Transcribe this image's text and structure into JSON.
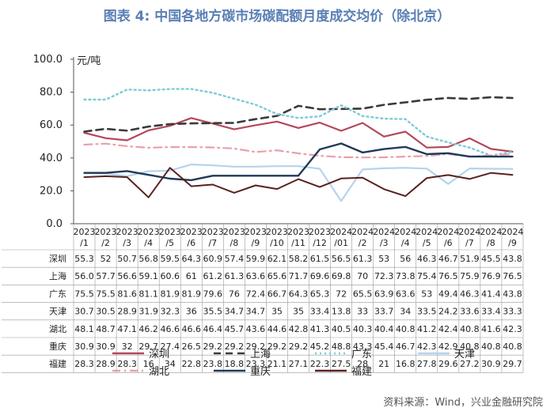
{
  "title": "图表 4:  中国各地方碳市场碳配额月度成交均价（除北京）",
  "source": "资料来源：Wind，兴业金融研究院",
  "chart_data": {
    "type": "line",
    "ylabel": "元/吨",
    "ylim": [
      0,
      100
    ],
    "yticks": [
      "0.0",
      "20.0",
      "40.0",
      "60.0",
      "80.0",
      "100.0"
    ],
    "grid": false,
    "legend_position": "bottom",
    "categories": [
      [
        "2023",
        "/1"
      ],
      [
        "2023",
        "/2"
      ],
      [
        "2023",
        "/3"
      ],
      [
        "2023",
        "/4"
      ],
      [
        "2023",
        "/5"
      ],
      [
        "2023",
        "/6"
      ],
      [
        "2023",
        "/7"
      ],
      [
        "2023",
        "/8"
      ],
      [
        "2023",
        "/9"
      ],
      [
        "2023",
        "/10"
      ],
      [
        "2023",
        "/11"
      ],
      [
        "2023",
        "/12"
      ],
      [
        "2024",
        "/01"
      ],
      [
        "2024",
        "/2"
      ],
      [
        "2024",
        "/3"
      ],
      [
        "2024",
        "/4"
      ],
      [
        "2024",
        "/5"
      ],
      [
        "2024",
        "/6"
      ],
      [
        "2024",
        "/7"
      ],
      [
        "2024",
        "/8"
      ],
      [
        "2024",
        "/9"
      ]
    ],
    "series": [
      {
        "name": "深圳",
        "color": "#b5475b",
        "style": "solid",
        "width": 2.2,
        "legend_row": 0,
        "values": [
          55.3,
          52,
          50.7,
          56.8,
          59.5,
          64.3,
          60.9,
          57.4,
          59.9,
          62.1,
          58.2,
          61.5,
          56.5,
          61.3,
          53,
          56,
          46.3,
          46.7,
          51.9,
          45.5,
          43.8
        ],
        "labels": [
          "55.3",
          "52",
          "50.7",
          "56.8",
          "59.5",
          "64.3",
          "60.9",
          "57.4",
          "59.9",
          "62.1",
          "58.2",
          "61.5",
          "56.5",
          "61.3",
          "53",
          "56",
          "46.3",
          "46.7",
          "51.9",
          "45.5",
          "43.8"
        ]
      },
      {
        "name": "上海",
        "color": "#3a3a3a",
        "style": "dash",
        "width": 2.6,
        "legend_row": 0,
        "values": [
          56.0,
          57.7,
          56.6,
          59.1,
          60.6,
          61,
          61.2,
          61.3,
          63.6,
          65.6,
          71.7,
          69.6,
          69.8,
          70,
          72.3,
          73.8,
          75.4,
          76.5,
          75.9,
          76.9,
          76.5
        ],
        "labels": [
          "56.0",
          "57.7",
          "56.6",
          "59.1",
          "60.6",
          "61",
          "61.2",
          "61.3",
          "63.6",
          "65.6",
          "71.7",
          "69.6",
          "69.8",
          "70",
          "72.3",
          "73.8",
          "75.4",
          "76.5",
          "75.9",
          "76.9",
          "76.5"
        ]
      },
      {
        "name": "广东",
        "color": "#7ecad8",
        "style": "dot",
        "width": 2.4,
        "legend_row": 0,
        "values": [
          75.5,
          75.5,
          81.6,
          81.1,
          81.9,
          81.9,
          79.6,
          76,
          72.4,
          66.7,
          64.3,
          65.3,
          72,
          65.5,
          63.9,
          63.6,
          53,
          49.4,
          46.3,
          41.4,
          43.8
        ],
        "labels": [
          "75.5",
          "75.5",
          "81.6",
          "81.1",
          "81.9",
          "81.9",
          "79.6",
          "76",
          "72.4",
          "66.7",
          "64.3",
          "65.3",
          "72",
          "65.5",
          "63.9",
          "63.6",
          "53",
          "49.4",
          "46.3",
          "41.4",
          "43.8"
        ]
      },
      {
        "name": "天津",
        "color": "#b5d3ec",
        "style": "solid",
        "width": 2.2,
        "legend_row": 0,
        "values": [
          30.7,
          30.5,
          28.9,
          31.9,
          32.3,
          36,
          35.5,
          34.7,
          34.7,
          35,
          35,
          33.4,
          13.8,
          33,
          33.7,
          34,
          33.5,
          24.2,
          33.6,
          33.4,
          33.3
        ],
        "labels": [
          "30.7",
          "30.5",
          "28.9",
          "31.9",
          "32.3",
          "36",
          "35.5",
          "34.7",
          "34.7",
          "35",
          "35",
          "33.4",
          "13.8",
          "33",
          "33.7",
          "34",
          "33.5",
          "24.2",
          "33.6",
          "33.4",
          "33.3"
        ]
      },
      {
        "name": "湖北",
        "color": "#e8a0aa",
        "style": "dashdot",
        "width": 2.2,
        "legend_row": 1,
        "values": [
          48.1,
          48.7,
          47.1,
          46.2,
          46.6,
          46.6,
          46.4,
          45.7,
          43.6,
          44.6,
          42.8,
          41.3,
          40.5,
          40.3,
          40.4,
          40.8,
          41.2,
          42.4,
          40.8,
          41.6,
          42.3
        ],
        "labels": [
          "48.1",
          "48.7",
          "47.1",
          "46.2",
          "46.6",
          "46.6",
          "46.4",
          "45.7",
          "43.6",
          "44.6",
          "42.8",
          "41.3",
          "40.5",
          "40.3",
          "40.4",
          "40.8",
          "41.2",
          "42.4",
          "40.8",
          "41.6",
          "42.3"
        ]
      },
      {
        "name": "重庆",
        "color": "#1f3a5a",
        "style": "solid",
        "width": 2.4,
        "legend_row": 1,
        "values": [
          30.9,
          30.9,
          32,
          29.7,
          27.4,
          26.5,
          29.2,
          29.2,
          29.2,
          29.2,
          29.2,
          45.2,
          48.8,
          43.3,
          45.4,
          46.7,
          42.3,
          42.9,
          40.8,
          40.8,
          40.8
        ],
        "labels": [
          "30.9",
          "30.9",
          "32",
          "29.7",
          "27.4",
          "26.5",
          "29.2",
          "29.2",
          "29.2",
          "29.2",
          "29.2",
          "45.2",
          "48.8",
          "43.3",
          "45.4",
          "46.7",
          "42.3",
          "42.9",
          "40.8",
          "40.8",
          "40.8"
        ]
      },
      {
        "name": "福建",
        "color": "#5a2020",
        "style": "solid",
        "width": 2.0,
        "legend_row": 1,
        "values": [
          28.3,
          28.9,
          28.3,
          16,
          34,
          22.8,
          23.8,
          18.8,
          23.3,
          21.1,
          27.1,
          22.3,
          27.5,
          28,
          21,
          16.8,
          27.8,
          29.6,
          27.2,
          30.9,
          29.7
        ],
        "labels": [
          "28.3",
          "28.9",
          "28.3",
          "16",
          "34",
          "22.8",
          "23.8",
          "18.8",
          "23.3",
          "21.1",
          "27.1",
          "22.3",
          "27.5",
          "28",
          "21",
          "16.8",
          "27.8",
          "29.6",
          "27.2",
          "30.9",
          "29.7"
        ]
      }
    ]
  }
}
